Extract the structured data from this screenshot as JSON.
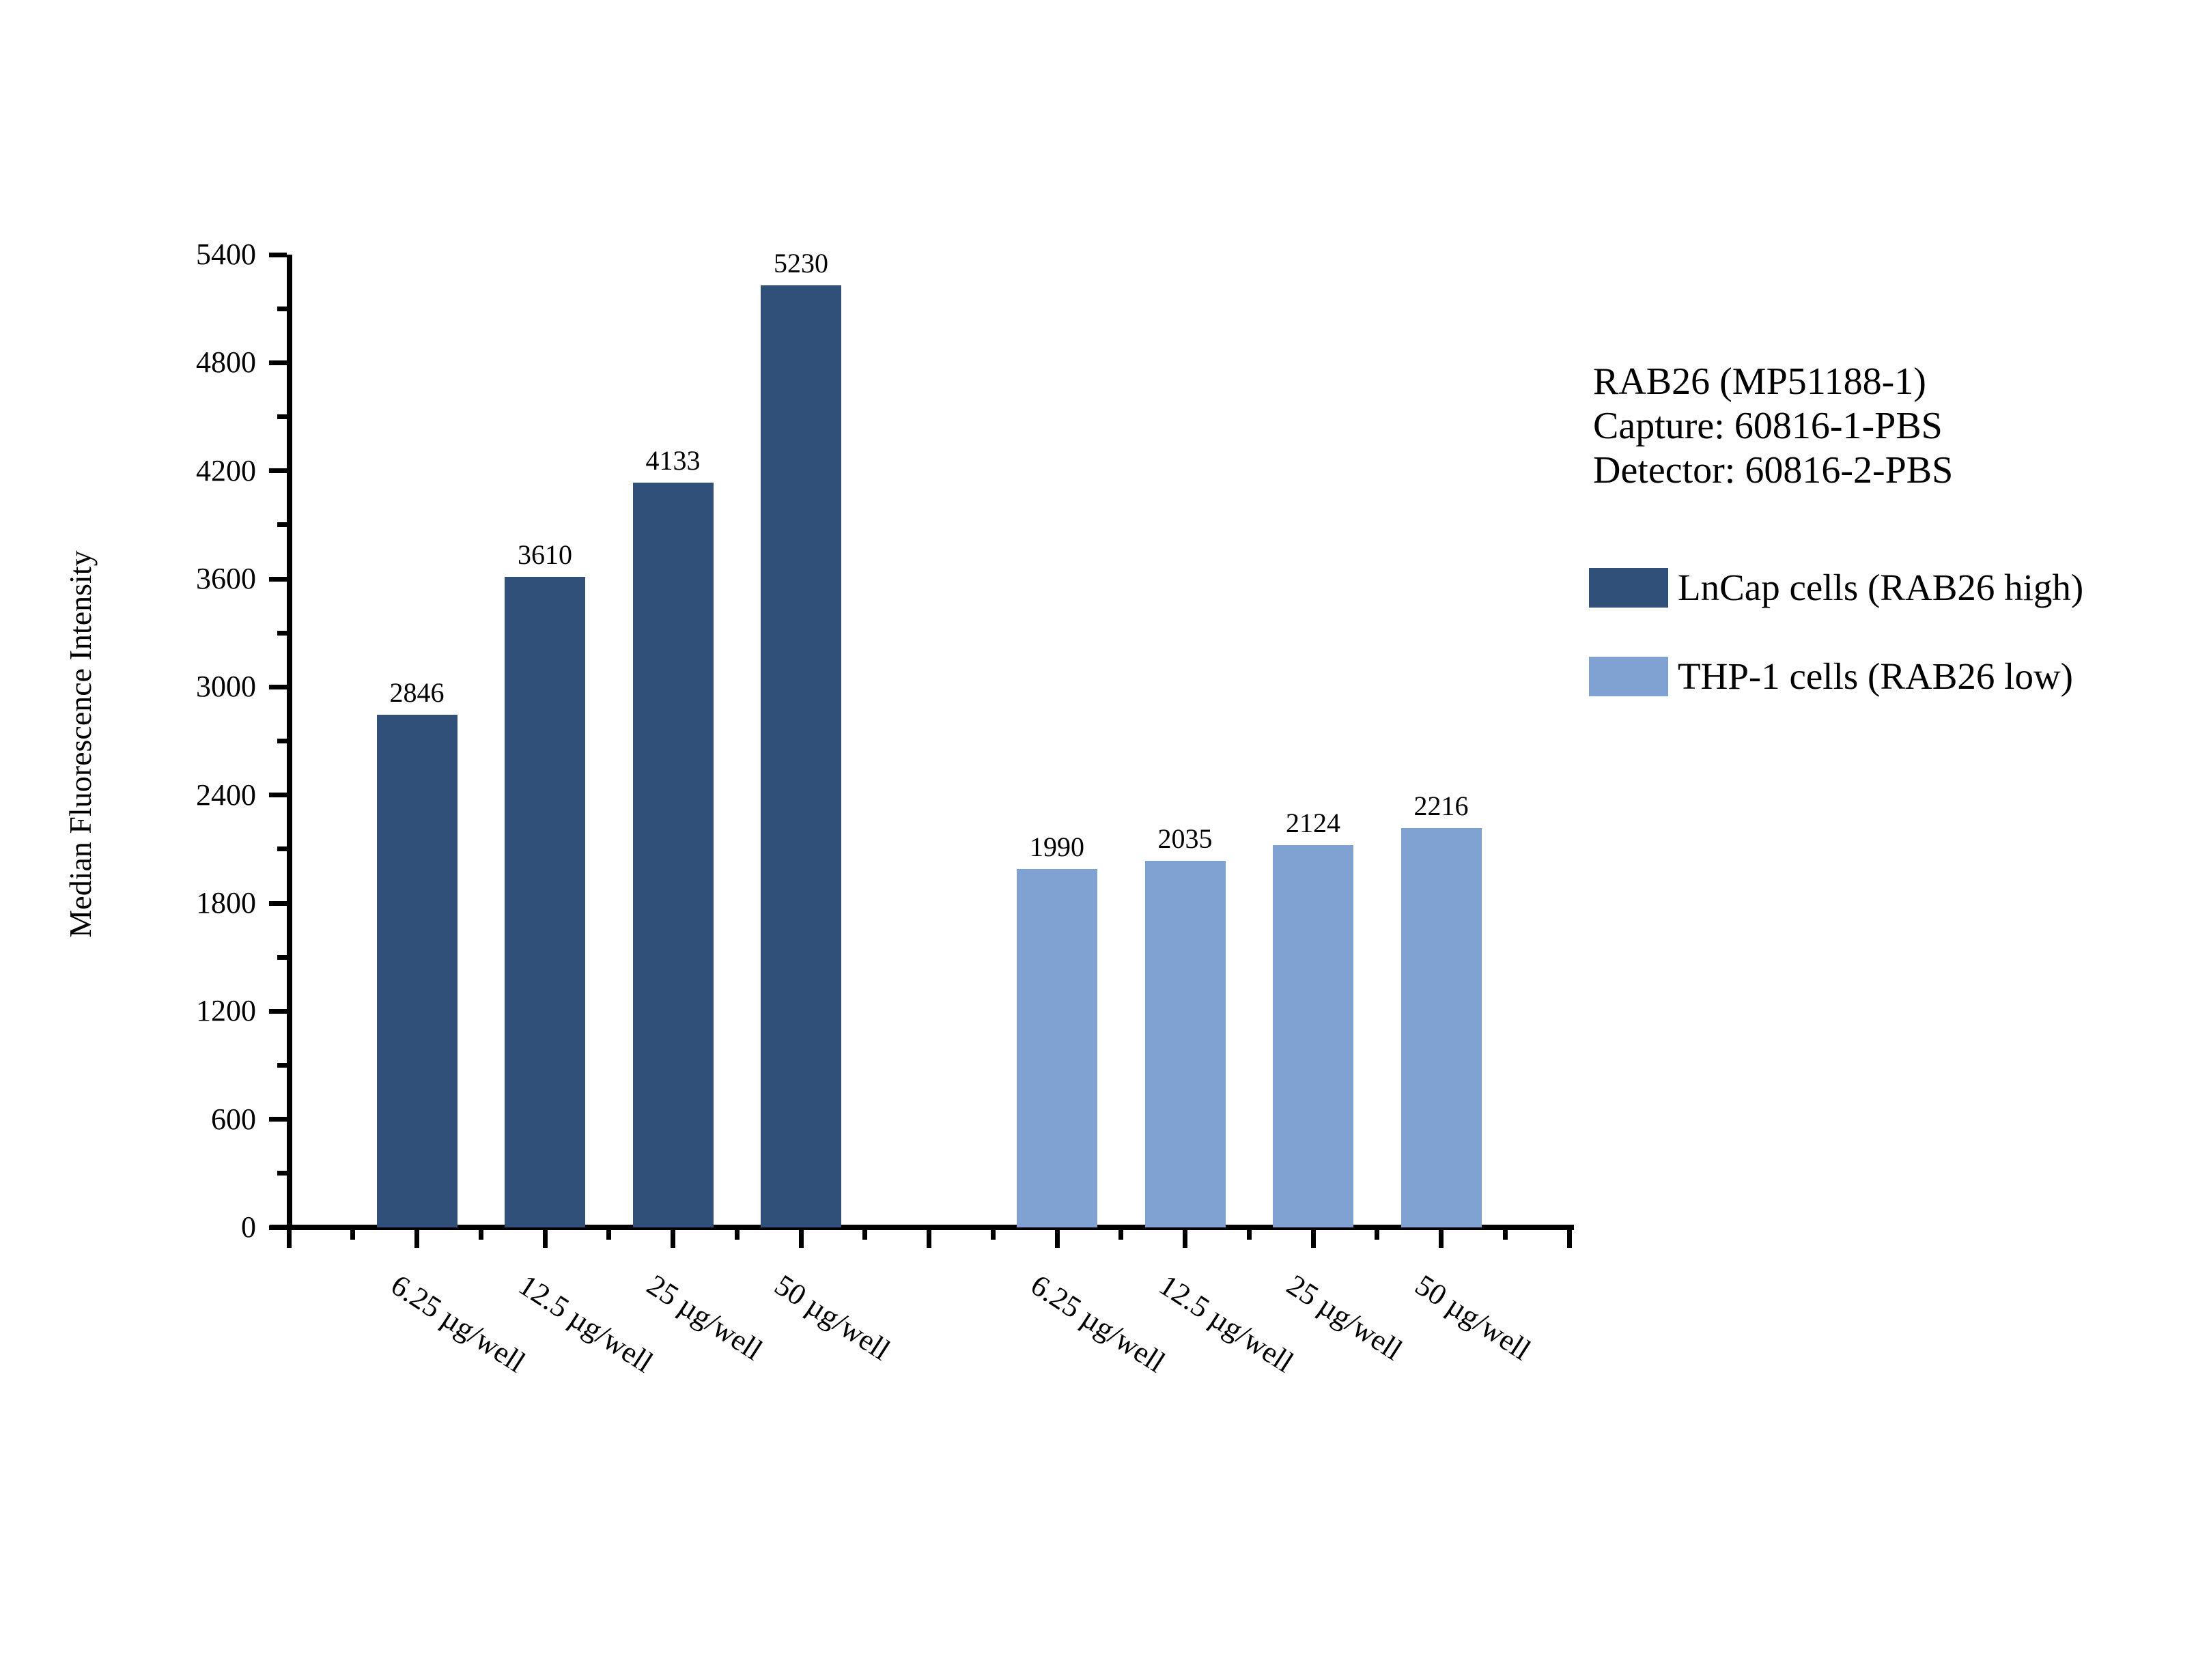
{
  "chart_data": {
    "type": "bar",
    "title": "",
    "xlabel": "",
    "ylabel": "Median Fluorescence Intensity",
    "ylim": [
      0,
      5400
    ],
    "ytick_step": 600,
    "ytick_minor_step": 300,
    "grid": false,
    "legend_position": "right",
    "bar_value_labels": true,
    "categories": [
      "6.25 µg/well",
      "12.5 µg/well",
      "25 µg/well",
      "50 µg/well"
    ],
    "series": [
      {
        "name": "LnCap cells (RAB26 high)",
        "color": "#315079",
        "values": [
          2846,
          3610,
          4133,
          5230
        ]
      },
      {
        "name": "THP-1 cells (RAB26 low)",
        "color": "#7FA2D3",
        "values": [
          1990,
          2035,
          2124,
          2216
        ]
      }
    ]
  },
  "annotation": {
    "lines": [
      "RAB26 (MP51188-1)",
      "Capture: 60816-1-PBS",
      "Detector: 60816-2-PBS"
    ]
  },
  "legend": {
    "items": [
      {
        "label": "LnCap cells (RAB26 high)",
        "color": "#315079"
      },
      {
        "label": "THP-1 cells (RAB26 low)",
        "color": "#7FA2D3"
      }
    ]
  }
}
